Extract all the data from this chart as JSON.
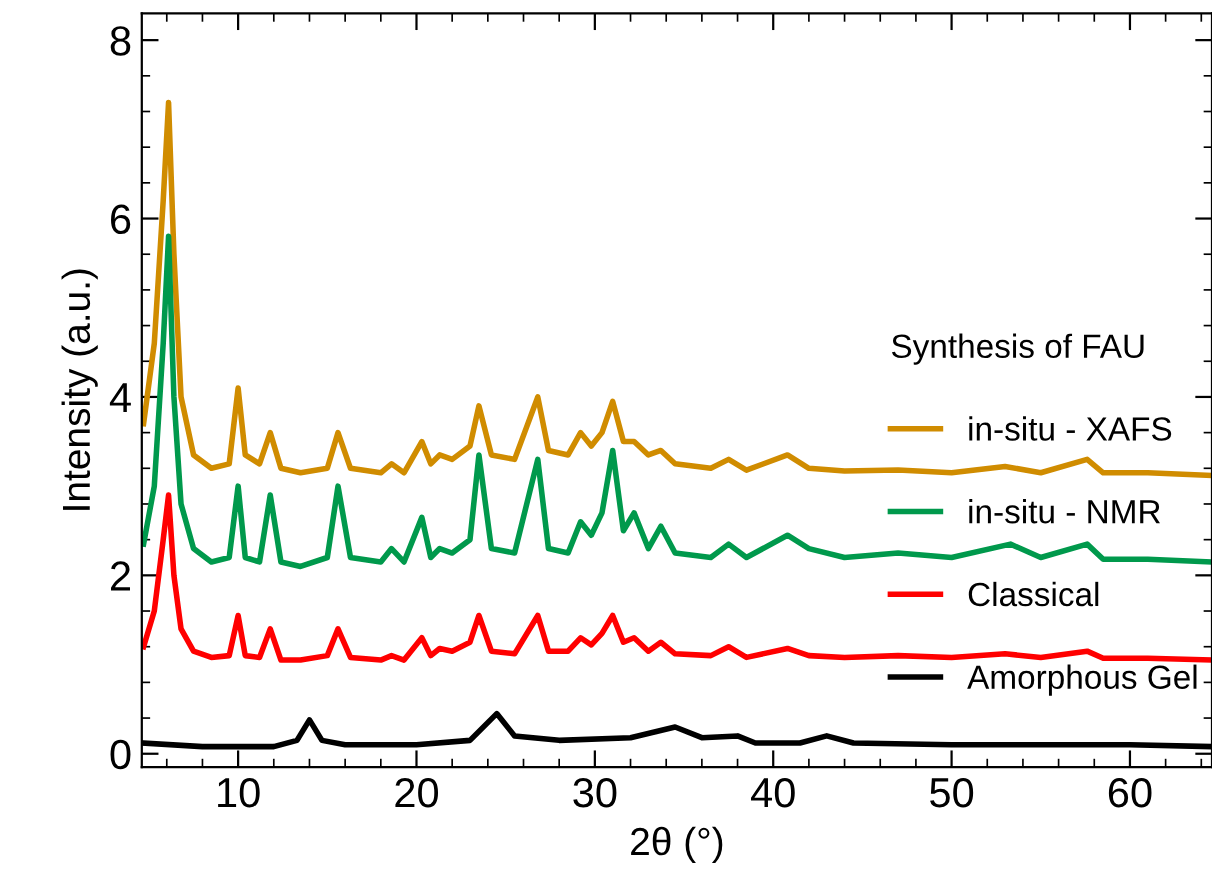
{
  "chart_data": {
    "type": "line",
    "xlabel": "2θ (°)",
    "ylabel": "Intensity (a.u.)",
    "legend_title": "Synthesis of FAU",
    "legend": "right",
    "grid": false,
    "xlim": [
      4.6,
      64.6
    ],
    "ylim": [
      -0.15,
      8.3
    ],
    "xticks": [
      10,
      20,
      30,
      40,
      50,
      60
    ],
    "yticks": [
      0,
      2,
      4,
      6,
      8
    ],
    "series": [
      {
        "name": "in-situ - XAFS",
        "color": "#d08c00",
        "x": [
          4.7,
          5.3,
          5.8,
          6.1,
          6.4,
          6.8,
          7.5,
          8.5,
          9.5,
          10.0,
          10.4,
          11.2,
          11.8,
          12.4,
          13.5,
          15.0,
          15.6,
          16.3,
          18.0,
          18.6,
          19.3,
          20.3,
          20.8,
          21.3,
          22.0,
          23.0,
          23.5,
          24.2,
          25.5,
          26.8,
          27.4,
          28.5,
          29.2,
          29.8,
          30.4,
          31.0,
          31.6,
          32.2,
          33.0,
          33.7,
          34.5,
          36.5,
          37.5,
          38.5,
          40.8,
          42.0,
          44.0,
          47.0,
          50.0,
          53.0,
          55.0,
          57.6,
          58.5,
          61.0,
          64.6
        ],
        "values": [
          3.7,
          4.6,
          6.2,
          7.3,
          5.6,
          4.0,
          3.35,
          3.2,
          3.25,
          4.1,
          3.35,
          3.25,
          3.6,
          3.2,
          3.15,
          3.2,
          3.6,
          3.2,
          3.15,
          3.25,
          3.15,
          3.5,
          3.25,
          3.35,
          3.3,
          3.45,
          3.9,
          3.35,
          3.3,
          4.0,
          3.4,
          3.35,
          3.6,
          3.45,
          3.6,
          3.95,
          3.5,
          3.5,
          3.35,
          3.4,
          3.25,
          3.2,
          3.3,
          3.18,
          3.35,
          3.2,
          3.17,
          3.18,
          3.15,
          3.22,
          3.15,
          3.3,
          3.15,
          3.15,
          3.12
        ]
      },
      {
        "name": "in-situ - NMR",
        "color": "#00994c",
        "x": [
          4.7,
          5.3,
          5.8,
          6.1,
          6.4,
          6.8,
          7.5,
          8.5,
          9.5,
          10.0,
          10.4,
          11.2,
          11.8,
          12.4,
          13.5,
          15.0,
          15.6,
          16.3,
          18.0,
          18.6,
          19.3,
          20.3,
          20.8,
          21.3,
          22.0,
          23.0,
          23.5,
          24.2,
          25.5,
          26.8,
          27.4,
          28.5,
          29.2,
          29.8,
          30.4,
          31.0,
          31.6,
          32.2,
          33.0,
          33.7,
          34.5,
          36.5,
          37.5,
          38.5,
          40.8,
          42.0,
          44.0,
          47.0,
          50.0,
          53.3,
          55.0,
          57.6,
          58.5,
          61.0,
          64.6
        ],
        "values": [
          2.35,
          3.0,
          4.6,
          5.8,
          4.0,
          2.8,
          2.3,
          2.15,
          2.2,
          3.0,
          2.2,
          2.15,
          2.9,
          2.15,
          2.1,
          2.2,
          3.0,
          2.2,
          2.15,
          2.3,
          2.15,
          2.65,
          2.2,
          2.3,
          2.25,
          2.4,
          3.35,
          2.3,
          2.25,
          3.3,
          2.3,
          2.25,
          2.6,
          2.45,
          2.7,
          3.4,
          2.5,
          2.7,
          2.3,
          2.55,
          2.25,
          2.2,
          2.35,
          2.2,
          2.45,
          2.3,
          2.2,
          2.25,
          2.2,
          2.35,
          2.2,
          2.35,
          2.18,
          2.18,
          2.15
        ]
      },
      {
        "name": "Classical",
        "color": "#ff0000",
        "x": [
          4.7,
          5.3,
          5.8,
          6.1,
          6.4,
          6.8,
          7.5,
          8.5,
          9.5,
          10.0,
          10.4,
          11.2,
          11.8,
          12.4,
          13.5,
          15.0,
          15.6,
          16.3,
          18.0,
          18.6,
          19.3,
          20.3,
          20.8,
          21.3,
          22.0,
          23.0,
          23.5,
          24.2,
          25.5,
          26.8,
          27.4,
          28.5,
          29.2,
          29.8,
          30.4,
          31.0,
          31.6,
          32.2,
          33.0,
          33.7,
          34.5,
          36.5,
          37.5,
          38.5,
          40.8,
          42.0,
          44.0,
          47.0,
          50.0,
          53.0,
          55.0,
          57.6,
          58.5,
          61.0,
          64.6
        ],
        "values": [
          1.2,
          1.6,
          2.4,
          2.9,
          2.0,
          1.4,
          1.15,
          1.08,
          1.1,
          1.55,
          1.1,
          1.08,
          1.4,
          1.05,
          1.05,
          1.1,
          1.4,
          1.08,
          1.05,
          1.1,
          1.05,
          1.3,
          1.1,
          1.18,
          1.15,
          1.25,
          1.55,
          1.15,
          1.12,
          1.55,
          1.15,
          1.15,
          1.3,
          1.22,
          1.35,
          1.55,
          1.25,
          1.3,
          1.15,
          1.25,
          1.12,
          1.1,
          1.2,
          1.08,
          1.18,
          1.1,
          1.08,
          1.1,
          1.08,
          1.12,
          1.08,
          1.15,
          1.07,
          1.07,
          1.05
        ]
      },
      {
        "name": "Amorphous Gel",
        "color": "#000000",
        "x": [
          4.7,
          8.0,
          12.0,
          13.3,
          14.0,
          14.7,
          16.0,
          20.0,
          23.0,
          24.5,
          25.5,
          28.0,
          32.0,
          34.5,
          36.0,
          38.0,
          39.0,
          41.5,
          43.0,
          44.5,
          50.0,
          55.0,
          60.0,
          64.6
        ],
        "values": [
          0.12,
          0.08,
          0.08,
          0.15,
          0.38,
          0.15,
          0.1,
          0.1,
          0.15,
          0.45,
          0.2,
          0.15,
          0.18,
          0.3,
          0.18,
          0.2,
          0.12,
          0.12,
          0.2,
          0.12,
          0.1,
          0.1,
          0.1,
          0.08
        ]
      }
    ]
  }
}
